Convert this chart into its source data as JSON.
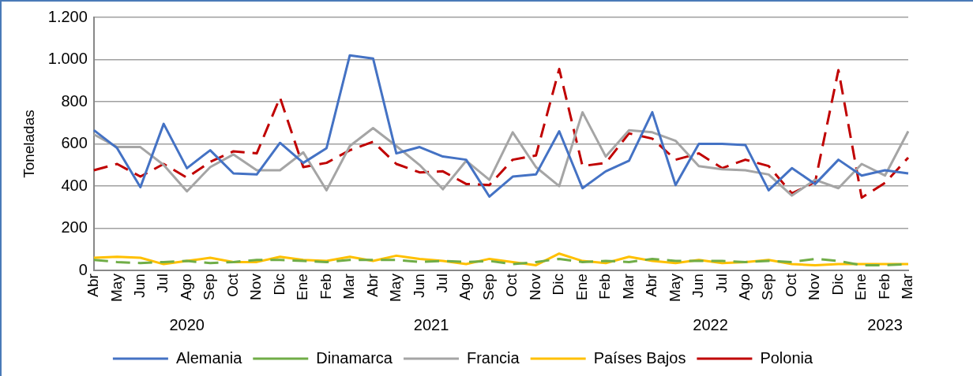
{
  "chart_data": {
    "type": "line",
    "ylabel": "Toneladas",
    "categories": [
      "Abr",
      "May",
      "Jun",
      "Jul",
      "Ago",
      "Sep",
      "Oct",
      "Nov",
      "Dic",
      "Ene",
      "Feb",
      "Mar",
      "Abr",
      "May",
      "Jun",
      "Jul",
      "Ago",
      "Sep",
      "Oct",
      "Nov",
      "Dic",
      "Ene",
      "Feb",
      "Mar",
      "Abr",
      "May",
      "Jun",
      "Jul",
      "Ago",
      "Sep",
      "Oct",
      "Nov",
      "Dic",
      "Ene",
      "Feb",
      "Mar"
    ],
    "annotations": [
      "2020",
      "2021",
      "2022",
      "2023"
    ],
    "ylim": [
      0,
      1200
    ],
    "yticks": [
      0,
      200,
      400,
      600,
      800,
      {
        "value": 1000,
        "label": "1.000"
      },
      {
        "value": 1200,
        "label": "1.200"
      }
    ],
    "grid": "y",
    "legend": "bottom",
    "marker": "none",
    "series": [
      {
        "name": "Alemania",
        "color": "#4472c4",
        "line_style": "solid",
        "values": [
          665,
          580,
          395,
          695,
          485,
          570,
          460,
          455,
          605,
          510,
          580,
          1020,
          1005,
          555,
          585,
          540,
          525,
          350,
          445,
          455,
          660,
          390,
          470,
          520,
          750,
          405,
          600,
          600,
          595,
          380,
          485,
          410,
          525,
          450,
          475,
          460
        ]
      },
      {
        "name": "Dinamarca",
        "color": "#70ad47",
        "line_style": "dashed",
        "values": [
          50,
          40,
          35,
          40,
          45,
          35,
          40,
          50,
          50,
          45,
          40,
          50,
          50,
          50,
          40,
          45,
          40,
          45,
          30,
          40,
          55,
          40,
          45,
          40,
          55,
          45,
          45,
          45,
          40,
          45,
          40,
          55,
          45,
          25,
          25,
          30
        ]
      },
      {
        "name": "Francia",
        "color": "#a5a5a5",
        "line_style": "solid",
        "values": [
          645,
          585,
          585,
          500,
          375,
          490,
          550,
          475,
          475,
          560,
          380,
          590,
          675,
          590,
          500,
          385,
          520,
          430,
          655,
          490,
          400,
          750,
          540,
          665,
          655,
          615,
          495,
          480,
          475,
          455,
          355,
          430,
          390,
          505,
          450,
          660
        ]
      },
      {
        "name": "Países Bajos",
        "color": "#ffc000",
        "line_style": "solid",
        "values": [
          60,
          65,
          60,
          30,
          45,
          60,
          40,
          40,
          65,
          50,
          45,
          65,
          45,
          70,
          55,
          45,
          30,
          55,
          40,
          25,
          80,
          45,
          35,
          65,
          45,
          35,
          50,
          35,
          40,
          50,
          30,
          25,
          30,
          30,
          30,
          30
        ]
      },
      {
        "name": "Polonia",
        "color": "#c00000",
        "line_style": "dashed",
        "values": [
          475,
          505,
          445,
          505,
          440,
          515,
          565,
          555,
          820,
          490,
          510,
          570,
          610,
          505,
          465,
          470,
          410,
          405,
          525,
          545,
          955,
          495,
          510,
          650,
          625,
          525,
          555,
          485,
          525,
          495,
          365,
          420,
          950,
          345,
          415,
          535
        ]
      }
    ]
  }
}
